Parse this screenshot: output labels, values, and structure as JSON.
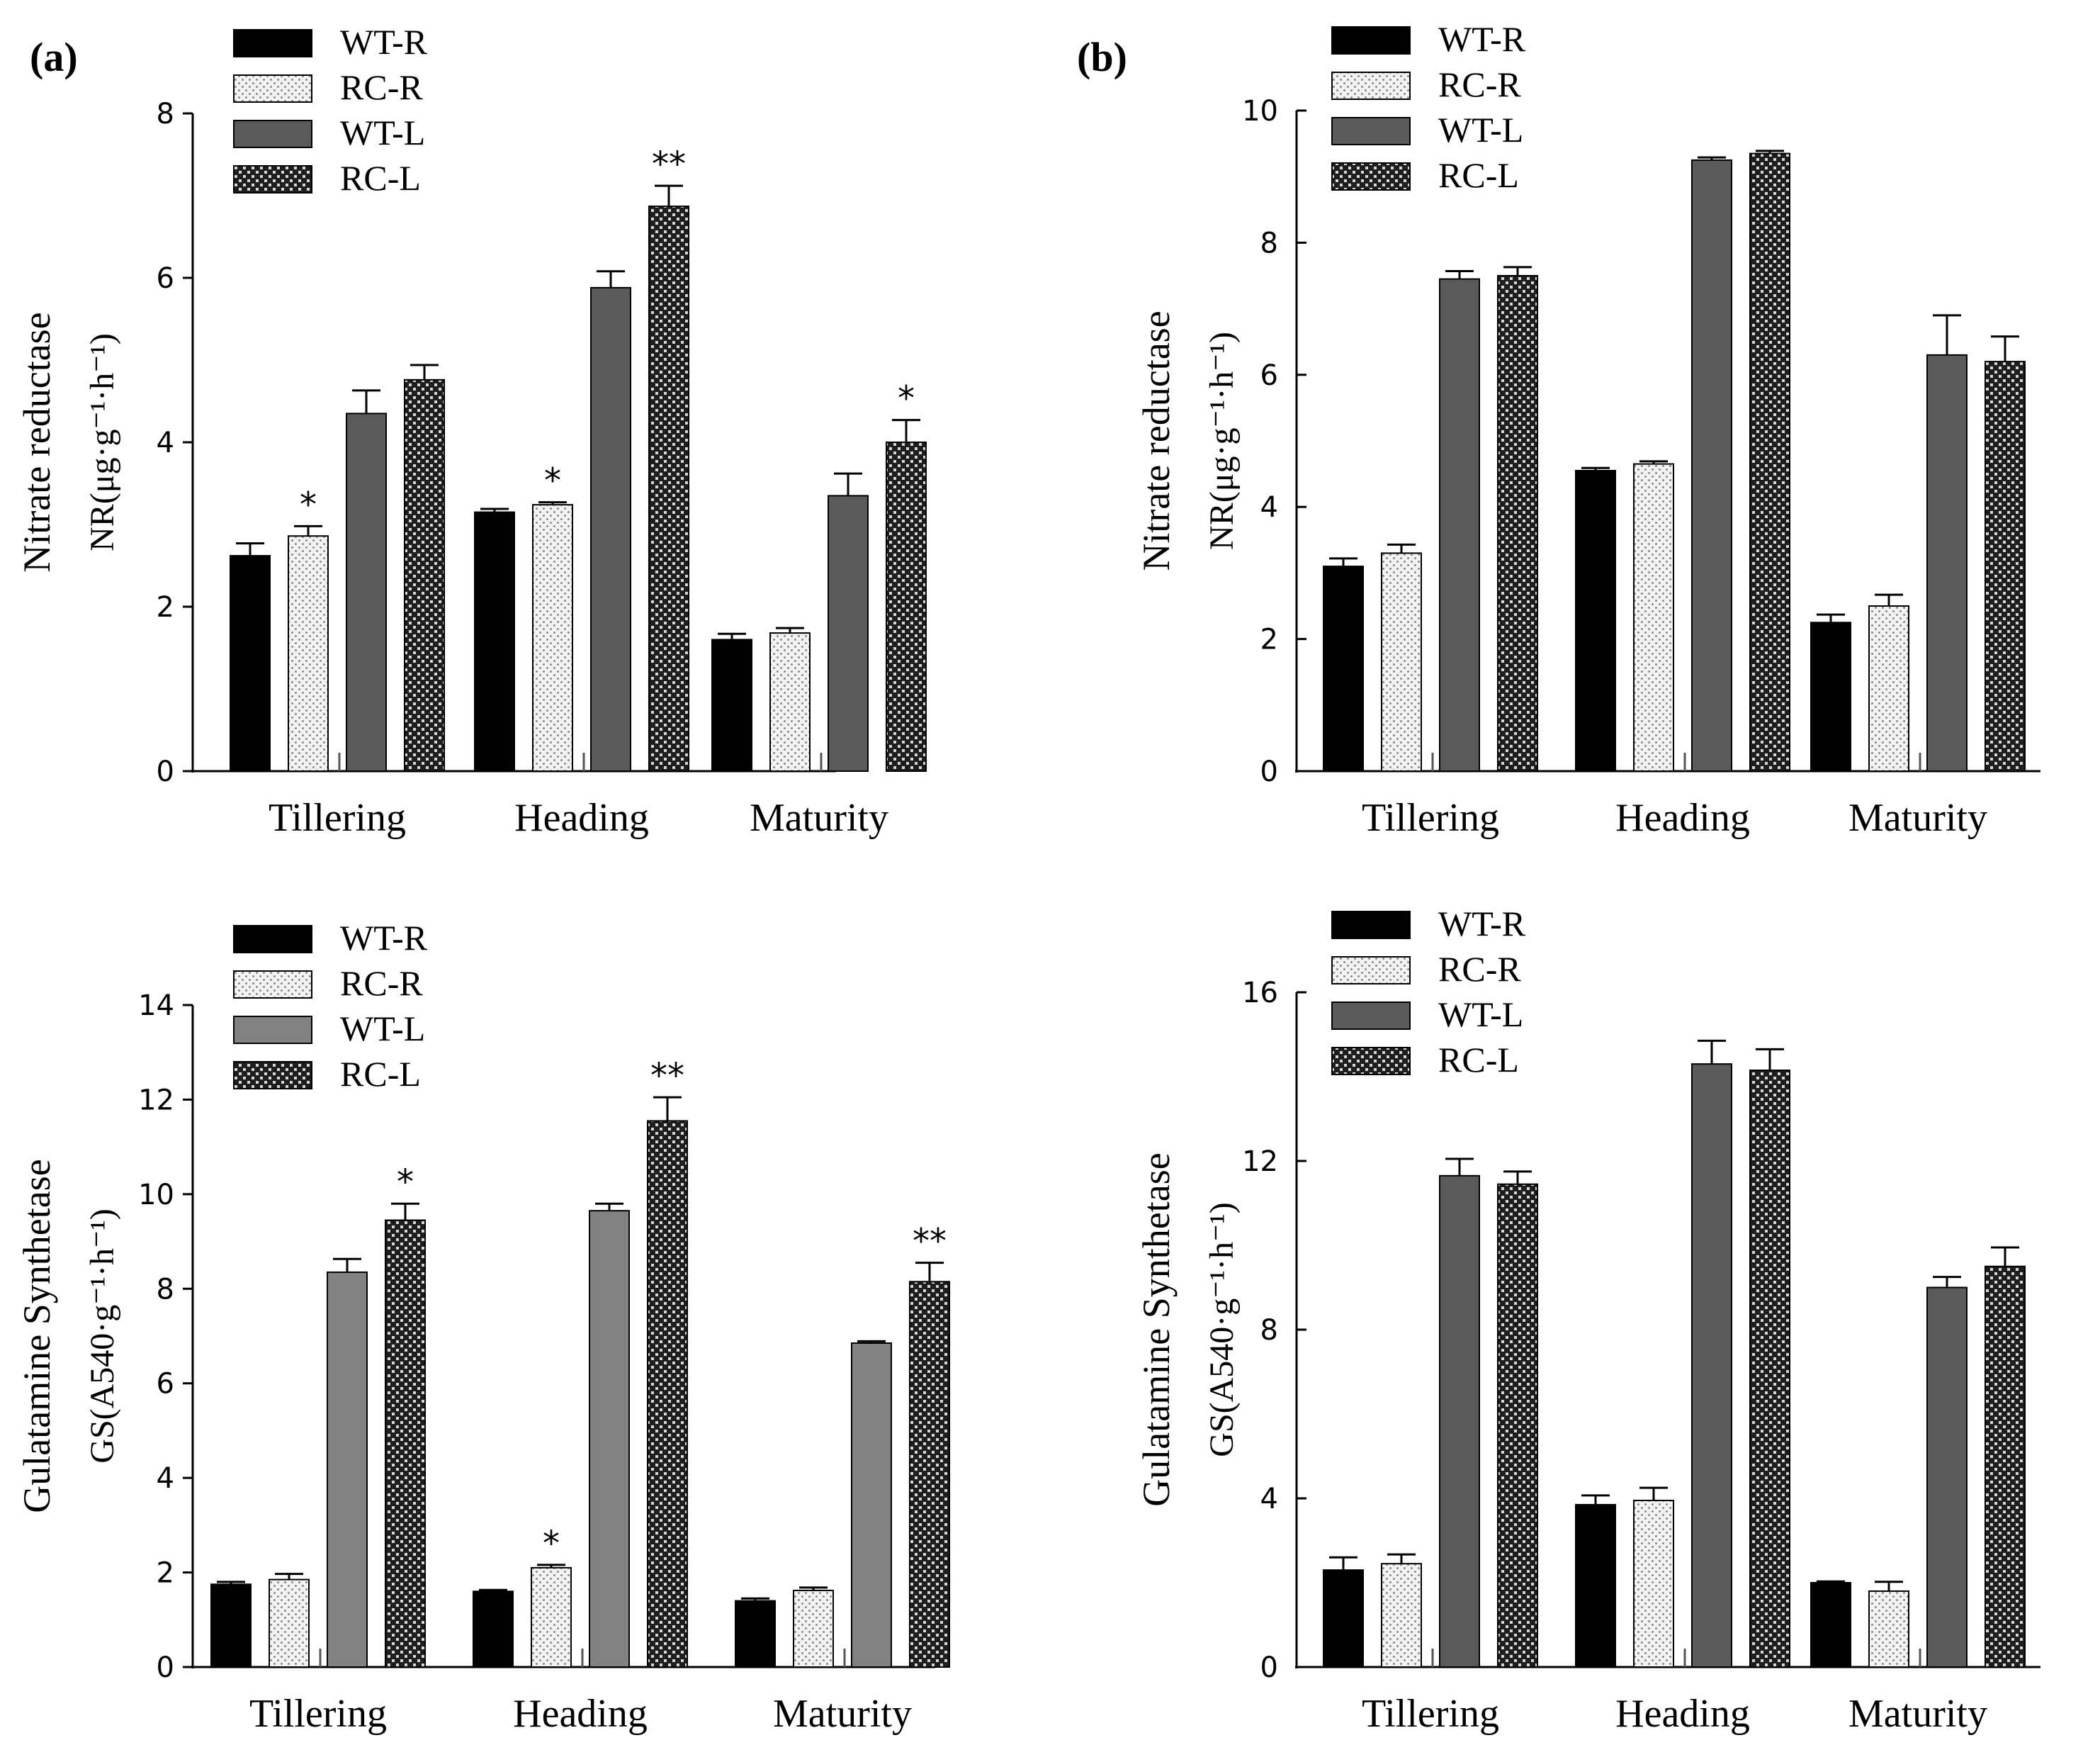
{
  "panel_labels": {
    "a": "(a)",
    "b": "(b)"
  },
  "colors": {
    "WT-R": "#000000",
    "RC-R": "#ececec",
    "WT-L_top": "#5a5a5a",
    "WT-L_bottom_a": "#828282",
    "RC-L": "#3a3a3a",
    "axis": "#000000"
  },
  "chart_data": [
    {
      "panel": "(a)",
      "type": "bar",
      "ylabel_main": "Nitrate reductase",
      "ylabel_sub": "NR(μg·g⁻¹·h⁻¹)",
      "categories": [
        "Tillering",
        "Heading",
        "Maturity"
      ],
      "ylim": [
        0,
        8
      ],
      "yticks": [
        0,
        2,
        4,
        6,
        8
      ],
      "series": [
        {
          "name": "WT-R",
          "values": [
            2.62,
            3.15,
            1.6
          ],
          "errors": [
            0.15,
            0.04,
            0.07
          ]
        },
        {
          "name": "RC-R",
          "values": [
            2.86,
            3.24,
            1.68
          ],
          "errors": [
            0.12,
            0.03,
            0.06
          ]
        },
        {
          "name": "WT-L",
          "values": [
            4.35,
            5.88,
            3.35
          ],
          "errors": [
            0.28,
            0.2,
            0.27
          ]
        },
        {
          "name": "RC-L",
          "values": [
            4.76,
            6.87,
            4.0
          ],
          "errors": [
            0.18,
            0.25,
            0.27
          ]
        }
      ],
      "significance": [
        {
          "category": "Tillering",
          "series": "RC-R",
          "mark": "*"
        },
        {
          "category": "Heading",
          "series": "RC-R",
          "mark": "*"
        },
        {
          "category": "Heading",
          "series": "RC-L",
          "mark": "**"
        },
        {
          "category": "Maturity",
          "series": "RC-L",
          "mark": "*"
        }
      ],
      "legend": "top-left"
    },
    {
      "panel": "(b)",
      "type": "bar",
      "ylabel_main": "Nitrate reductase",
      "ylabel_sub": "NR(μg·g⁻¹·h⁻¹)",
      "categories": [
        "Tillering",
        "Heading",
        "Maturity"
      ],
      "ylim": [
        0,
        10
      ],
      "yticks": [
        0,
        2,
        4,
        6,
        8,
        10
      ],
      "series": [
        {
          "name": "WT-R",
          "values": [
            3.1,
            4.55,
            2.25
          ],
          "errors": [
            0.12,
            0.04,
            0.12
          ]
        },
        {
          "name": "RC-R",
          "values": [
            3.3,
            4.65,
            2.5
          ],
          "errors": [
            0.13,
            0.04,
            0.17
          ]
        },
        {
          "name": "WT-L",
          "values": [
            7.45,
            9.25,
            6.3
          ],
          "errors": [
            0.12,
            0.04,
            0.6
          ]
        },
        {
          "name": "RC-L",
          "values": [
            7.5,
            9.35,
            6.2
          ],
          "errors": [
            0.13,
            0.04,
            0.38
          ]
        }
      ],
      "significance": [],
      "legend": "top-left"
    },
    {
      "panel": "(a)",
      "type": "bar",
      "ylabel_main": "Gulatamine Synthetase",
      "ylabel_sub": "GS(A540·g⁻¹·h⁻¹)",
      "categories": [
        "Tillering",
        "Heading",
        "Maturity"
      ],
      "ylim": [
        0,
        14
      ],
      "yticks": [
        0,
        2,
        4,
        6,
        8,
        10,
        12,
        14
      ],
      "series": [
        {
          "name": "WT-R",
          "values": [
            1.75,
            1.6,
            1.4
          ],
          "errors": [
            0.05,
            0.03,
            0.05
          ]
        },
        {
          "name": "RC-R",
          "values": [
            1.85,
            2.1,
            1.62
          ],
          "errors": [
            0.12,
            0.06,
            0.06
          ]
        },
        {
          "name": "WT-L",
          "values": [
            8.35,
            9.65,
            6.85
          ],
          "errors": [
            0.28,
            0.15,
            0.04
          ]
        },
        {
          "name": "RC-L",
          "values": [
            9.45,
            11.55,
            8.15
          ],
          "errors": [
            0.35,
            0.5,
            0.4
          ]
        }
      ],
      "significance": [
        {
          "category": "Tillering",
          "series": "RC-L",
          "mark": "*"
        },
        {
          "category": "Heading",
          "series": "RC-R",
          "mark": "*"
        },
        {
          "category": "Heading",
          "series": "RC-L",
          "mark": "**"
        },
        {
          "category": "Maturity",
          "series": "RC-L",
          "mark": "**"
        }
      ],
      "legend": "top-left"
    },
    {
      "panel": "(b)",
      "type": "bar",
      "ylabel_main": "Gulatamine Synthetase",
      "ylabel_sub": "GS(A540·g⁻¹·h⁻¹)",
      "categories": [
        "Tillering",
        "Heading",
        "Maturity"
      ],
      "ylim": [
        0,
        16
      ],
      "yticks": [
        0,
        4,
        8,
        12,
        16
      ],
      "series": [
        {
          "name": "WT-R",
          "values": [
            2.3,
            3.85,
            2.0
          ],
          "errors": [
            0.3,
            0.22,
            0.03
          ]
        },
        {
          "name": "RC-R",
          "values": [
            2.45,
            3.95,
            1.8
          ],
          "errors": [
            0.22,
            0.3,
            0.22
          ]
        },
        {
          "name": "WT-L",
          "values": [
            11.65,
            14.3,
            9.0
          ],
          "errors": [
            0.4,
            0.55,
            0.25
          ]
        },
        {
          "name": "RC-L",
          "values": [
            11.45,
            14.15,
            9.5
          ],
          "errors": [
            0.3,
            0.5,
            0.45
          ]
        }
      ],
      "significance": [],
      "legend": "top-left"
    }
  ]
}
